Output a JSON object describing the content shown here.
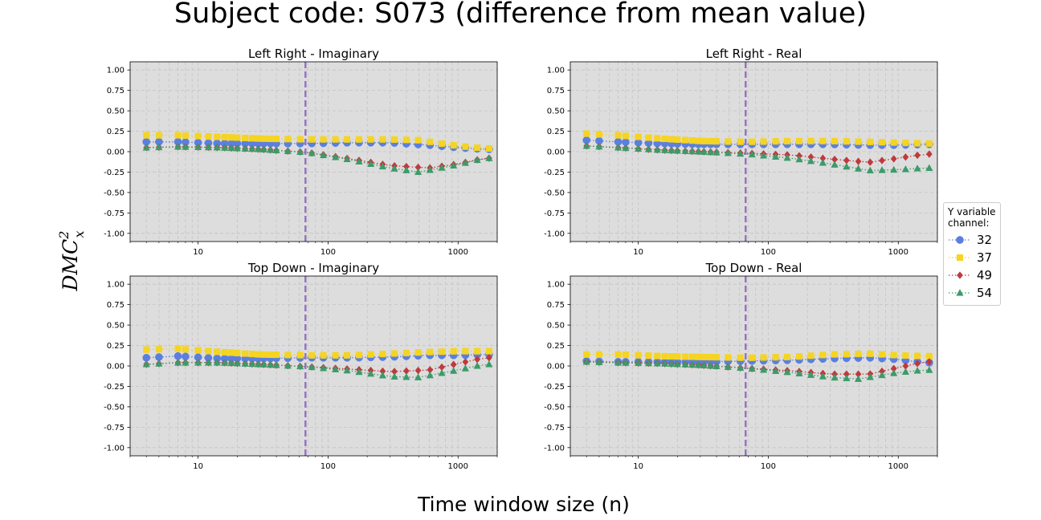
{
  "figure": {
    "title": "Subject code: S073 (difference from mean value)",
    "xlabel": "Time window size (n)",
    "ylabel": "DMC",
    "ylabel_sup": "2",
    "ylabel_sub": "x"
  },
  "legend": {
    "title_line1": "Y variable",
    "title_line2": "channel:"
  },
  "colors": {
    "s32": "#5b7fe0",
    "s37": "#f5d422",
    "s49": "#c0393b",
    "s54": "#3d9a6a",
    "vline": "#9370c0",
    "axes_bg": "#dddddd",
    "grid": "#c4c4c4"
  },
  "chart_data": [
    {
      "type": "scatter",
      "title": "Left Right - Imaginary",
      "x_scale": "log",
      "xlim": [
        3,
        2000
      ],
      "ylim": [
        -1.1,
        1.1
      ],
      "xticks": [
        10,
        100,
        1000
      ],
      "yticks": [
        -1.0,
        -0.75,
        -0.5,
        -0.25,
        0.0,
        0.25,
        0.5,
        0.75,
        1.0
      ],
      "vline_x": 67,
      "grid": true,
      "series": [
        {
          "name": "32",
          "marker": "circle",
          "color": "#5b7fe0",
          "points": [
            [
              4,
              0.12
            ],
            [
              7,
              0.12
            ],
            [
              15,
              0.1
            ],
            [
              30,
              0.1
            ],
            [
              70,
              0.1
            ],
            [
              150,
              0.11
            ],
            [
              300,
              0.11
            ],
            [
              600,
              0.08
            ],
            [
              1000,
              0.05
            ],
            [
              1600,
              0.03
            ]
          ]
        },
        {
          "name": "37",
          "marker": "square",
          "color": "#f5d422",
          "points": [
            [
              4,
              0.2
            ],
            [
              7,
              0.2
            ],
            [
              15,
              0.18
            ],
            [
              30,
              0.16
            ],
            [
              70,
              0.15
            ],
            [
              150,
              0.15
            ],
            [
              300,
              0.15
            ],
            [
              500,
              0.14
            ],
            [
              1000,
              0.07
            ],
            [
              1600,
              0.04
            ]
          ]
        },
        {
          "name": "49",
          "marker": "diamond",
          "color": "#c0393b",
          "points": [
            [
              4,
              0.05
            ],
            [
              7,
              0.06
            ],
            [
              15,
              0.05
            ],
            [
              30,
              0.03
            ],
            [
              70,
              -0.01
            ],
            [
              150,
              -0.09
            ],
            [
              300,
              -0.17
            ],
            [
              600,
              -0.2
            ],
            [
              1000,
              -0.15
            ],
            [
              1600,
              -0.08
            ]
          ]
        },
        {
          "name": "54",
          "marker": "triangle",
          "color": "#3d9a6a",
          "points": [
            [
              4,
              0.05
            ],
            [
              7,
              0.06
            ],
            [
              15,
              0.05
            ],
            [
              30,
              0.03
            ],
            [
              70,
              -0.01
            ],
            [
              150,
              -0.1
            ],
            [
              300,
              -0.2
            ],
            [
              500,
              -0.25
            ],
            [
              1000,
              -0.16
            ],
            [
              1600,
              -0.08
            ]
          ]
        }
      ]
    },
    {
      "type": "scatter",
      "title": "Left Right - Real",
      "x_scale": "log",
      "xlim": [
        3,
        2000
      ],
      "ylim": [
        -1.1,
        1.1
      ],
      "xticks": [
        10,
        100,
        1000
      ],
      "yticks": [
        -1.0,
        -0.75,
        -0.5,
        -0.25,
        0.0,
        0.25,
        0.5,
        0.75,
        1.0
      ],
      "vline_x": 67,
      "grid": true,
      "series": [
        {
          "name": "32",
          "marker": "circle",
          "color": "#5b7fe0",
          "points": [
            [
              4,
              0.14
            ],
            [
              7,
              0.12
            ],
            [
              15,
              0.1
            ],
            [
              30,
              0.09
            ],
            [
              70,
              0.09
            ],
            [
              150,
              0.09
            ],
            [
              300,
              0.09
            ],
            [
              600,
              0.08
            ],
            [
              1000,
              0.08
            ],
            [
              1600,
              0.09
            ]
          ]
        },
        {
          "name": "37",
          "marker": "square",
          "color": "#f5d422",
          "points": [
            [
              4,
              0.22
            ],
            [
              7,
              0.2
            ],
            [
              15,
              0.16
            ],
            [
              30,
              0.13
            ],
            [
              70,
              0.12
            ],
            [
              150,
              0.13
            ],
            [
              300,
              0.13
            ],
            [
              600,
              0.12
            ],
            [
              1000,
              0.11
            ],
            [
              1600,
              0.1
            ]
          ]
        },
        {
          "name": "49",
          "marker": "diamond",
          "color": "#c0393b",
          "points": [
            [
              4,
              0.07
            ],
            [
              7,
              0.05
            ],
            [
              15,
              0.02
            ],
            [
              30,
              0.0
            ],
            [
              70,
              -0.02
            ],
            [
              150,
              -0.04
            ],
            [
              300,
              -0.09
            ],
            [
              600,
              -0.13
            ],
            [
              1000,
              -0.08
            ],
            [
              1600,
              -0.03
            ]
          ]
        },
        {
          "name": "54",
          "marker": "triangle",
          "color": "#3d9a6a",
          "points": [
            [
              4,
              0.07
            ],
            [
              7,
              0.05
            ],
            [
              15,
              0.02
            ],
            [
              30,
              0.0
            ],
            [
              70,
              -0.03
            ],
            [
              150,
              -0.08
            ],
            [
              300,
              -0.15
            ],
            [
              600,
              -0.23
            ],
            [
              1000,
              -0.22
            ],
            [
              1600,
              -0.2
            ]
          ]
        }
      ]
    },
    {
      "type": "scatter",
      "title": "Top Down - Imaginary",
      "x_scale": "log",
      "xlim": [
        3,
        2000
      ],
      "ylim": [
        -1.1,
        1.1
      ],
      "xticks": [
        10,
        100,
        1000
      ],
      "yticks": [
        -1.0,
        -0.75,
        -0.5,
        -0.25,
        0.0,
        0.25,
        0.5,
        0.75,
        1.0
      ],
      "vline_x": 67,
      "grid": true,
      "series": [
        {
          "name": "32",
          "marker": "circle",
          "color": "#5b7fe0",
          "points": [
            [
              4,
              0.1
            ],
            [
              7,
              0.12
            ],
            [
              15,
              0.09
            ],
            [
              30,
              0.09
            ],
            [
              70,
              0.1
            ],
            [
              150,
              0.1
            ],
            [
              300,
              0.11
            ],
            [
              600,
              0.13
            ],
            [
              1000,
              0.13
            ],
            [
              1600,
              0.14
            ]
          ]
        },
        {
          "name": "37",
          "marker": "square",
          "color": "#f5d422",
          "points": [
            [
              4,
              0.2
            ],
            [
              7,
              0.21
            ],
            [
              15,
              0.17
            ],
            [
              30,
              0.14
            ],
            [
              70,
              0.13
            ],
            [
              150,
              0.13
            ],
            [
              300,
              0.15
            ],
            [
              600,
              0.17
            ],
            [
              1000,
              0.18
            ],
            [
              1600,
              0.18
            ]
          ]
        },
        {
          "name": "49",
          "marker": "diamond",
          "color": "#c0393b",
          "points": [
            [
              4,
              0.02
            ],
            [
              7,
              0.04
            ],
            [
              15,
              0.04
            ],
            [
              30,
              0.02
            ],
            [
              70,
              -0.01
            ],
            [
              150,
              -0.04
            ],
            [
              300,
              -0.07
            ],
            [
              600,
              -0.05
            ],
            [
              1000,
              0.03
            ],
            [
              1600,
              0.1
            ]
          ]
        },
        {
          "name": "54",
          "marker": "triangle",
          "color": "#3d9a6a",
          "points": [
            [
              4,
              0.02
            ],
            [
              7,
              0.04
            ],
            [
              15,
              0.04
            ],
            [
              30,
              0.02
            ],
            [
              70,
              -0.01
            ],
            [
              150,
              -0.06
            ],
            [
              300,
              -0.13
            ],
            [
              500,
              -0.14
            ],
            [
              1000,
              -0.05
            ],
            [
              1600,
              0.02
            ]
          ]
        }
      ]
    },
    {
      "type": "scatter",
      "title": "Top Down - Real",
      "x_scale": "log",
      "xlim": [
        3,
        2000
      ],
      "ylim": [
        -1.1,
        1.1
      ],
      "xticks": [
        10,
        100,
        1000
      ],
      "yticks": [
        -1.0,
        -0.75,
        -0.5,
        -0.25,
        0.0,
        0.25,
        0.5,
        0.75,
        1.0
      ],
      "vline_x": 67,
      "grid": true,
      "series": [
        {
          "name": "32",
          "marker": "circle",
          "color": "#5b7fe0",
          "points": [
            [
              4,
              0.06
            ],
            [
              7,
              0.05
            ],
            [
              15,
              0.05
            ],
            [
              30,
              0.05
            ],
            [
              70,
              0.06
            ],
            [
              150,
              0.07
            ],
            [
              300,
              0.09
            ],
            [
              600,
              0.1
            ],
            [
              1000,
              0.08
            ],
            [
              1600,
              0.04
            ]
          ]
        },
        {
          "name": "37",
          "marker": "square",
          "color": "#f5d422",
          "points": [
            [
              4,
              0.14
            ],
            [
              7,
              0.14
            ],
            [
              15,
              0.12
            ],
            [
              30,
              0.11
            ],
            [
              70,
              0.1
            ],
            [
              150,
              0.11
            ],
            [
              300,
              0.14
            ],
            [
              600,
              0.15
            ],
            [
              1000,
              0.13
            ],
            [
              1600,
              0.12
            ]
          ]
        },
        {
          "name": "49",
          "marker": "diamond",
          "color": "#c0393b",
          "points": [
            [
              4,
              0.05
            ],
            [
              7,
              0.04
            ],
            [
              15,
              0.03
            ],
            [
              30,
              0.01
            ],
            [
              70,
              -0.03
            ],
            [
              150,
              -0.06
            ],
            [
              300,
              -0.1
            ],
            [
              600,
              -0.1
            ],
            [
              1000,
              -0.02
            ],
            [
              1600,
              0.05
            ]
          ]
        },
        {
          "name": "54",
          "marker": "triangle",
          "color": "#3d9a6a",
          "points": [
            [
              4,
              0.05
            ],
            [
              7,
              0.04
            ],
            [
              15,
              0.03
            ],
            [
              30,
              0.01
            ],
            [
              70,
              -0.03
            ],
            [
              150,
              -0.08
            ],
            [
              300,
              -0.14
            ],
            [
              500,
              -0.16
            ],
            [
              1000,
              -0.08
            ],
            [
              1600,
              -0.05
            ]
          ]
        }
      ]
    }
  ]
}
